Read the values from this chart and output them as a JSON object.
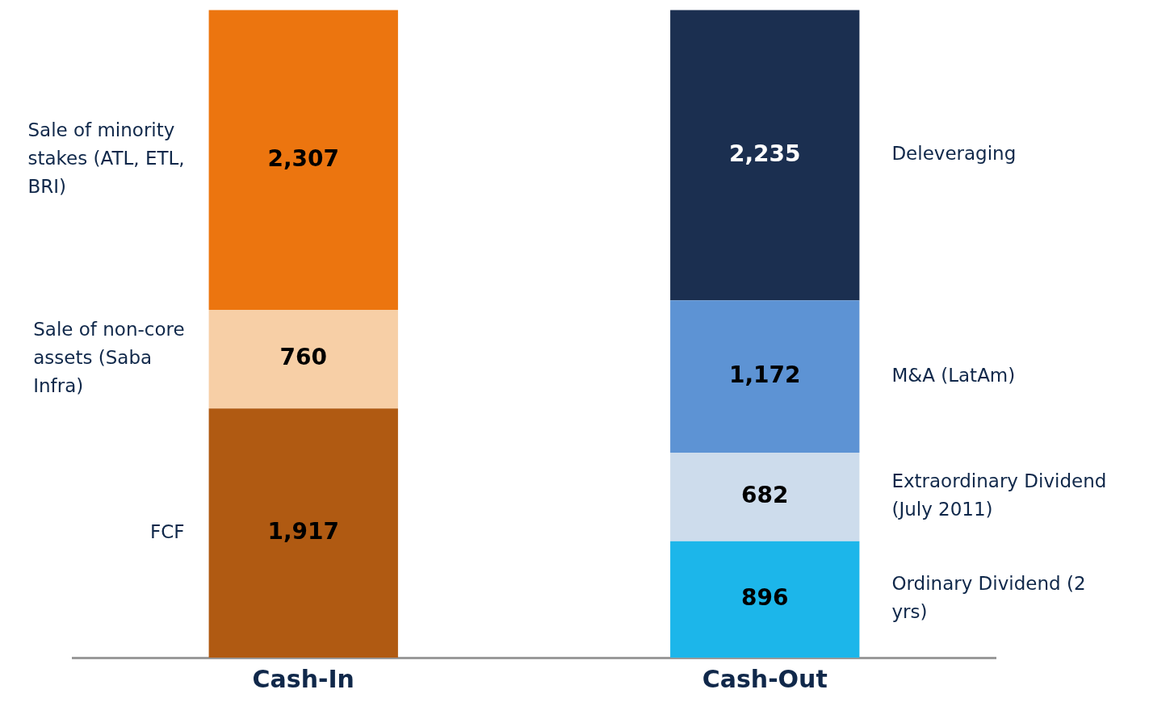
{
  "chart_data": {
    "type": "bar",
    "stacked": true,
    "categories": [
      "Cash-In",
      "Cash-Out"
    ],
    "series": [
      {
        "name": "FCF",
        "color": "#b05a12",
        "values": [
          1917,
          null
        ],
        "value_labels": [
          "1,917",
          null
        ]
      },
      {
        "name": "Sale of non-core assets (Saba Infra)",
        "color": "#f7cfa6",
        "values": [
          760,
          null
        ],
        "value_labels": [
          "760",
          null
        ]
      },
      {
        "name": "Sale of minority stakes (ATL, ETL, BRI)",
        "color": "#ec750f",
        "values": [
          2307,
          null
        ],
        "value_labels": [
          "2,307",
          null
        ]
      },
      {
        "name": "Ordinary Dividend (2 yrs)",
        "color": "#1cb6ea",
        "values": [
          null,
          896
        ],
        "value_labels": [
          null,
          "896"
        ]
      },
      {
        "name": "Extraordinary Dividend (July 2011)",
        "color": "#cddcec",
        "values": [
          null,
          682
        ],
        "value_labels": [
          null,
          "682"
        ]
      },
      {
        "name": "M&A (LatAm)",
        "color": "#5d93d4",
        "values": [
          null,
          1172
        ],
        "value_labels": [
          null,
          "1,172"
        ]
      },
      {
        "name": "Deleveraging",
        "color": "#1b2f50",
        "values": [
          null,
          2235
        ],
        "value_labels": [
          null,
          "2,235"
        ]
      }
    ]
  }
}
